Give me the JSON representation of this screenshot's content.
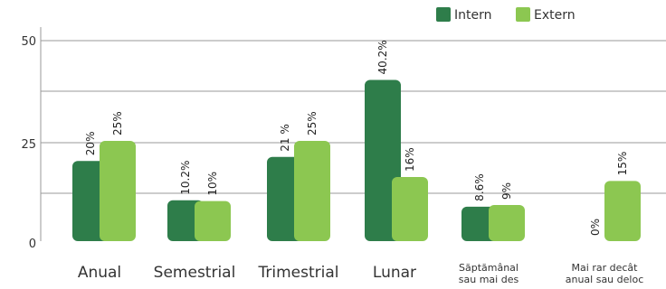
{
  "chart_data": {
    "type": "bar",
    "categories": [
      [
        "Anual"
      ],
      [
        "Semestrial"
      ],
      [
        "Trimestrial"
      ],
      [
        "Lunar"
      ],
      [
        "Săptămânal",
        "sau mai des"
      ],
      [
        "Mai rar decât",
        "anual sau deloc"
      ]
    ],
    "series": [
      {
        "name": "Intern",
        "color": "#2e7d4a",
        "values": [
          20,
          10.2,
          21,
          40.2,
          8.6,
          0
        ],
        "labels": [
          "20%",
          "10.2%",
          "21 %",
          "40.2%",
          "8.6%",
          "0%"
        ]
      },
      {
        "name": "Extern",
        "color": "#8cc751",
        "values": [
          25,
          10,
          25,
          16,
          9,
          15
        ],
        "labels": [
          "25%",
          "10%",
          "25%",
          "16%",
          "9%",
          "15%"
        ]
      }
    ],
    "y_ticks": [
      "0",
      "25",
      "50"
    ],
    "ylim": [
      0,
      50
    ],
    "grid": true,
    "legend_position": "top-right",
    "title": "",
    "xlabel": "",
    "ylabel": ""
  }
}
